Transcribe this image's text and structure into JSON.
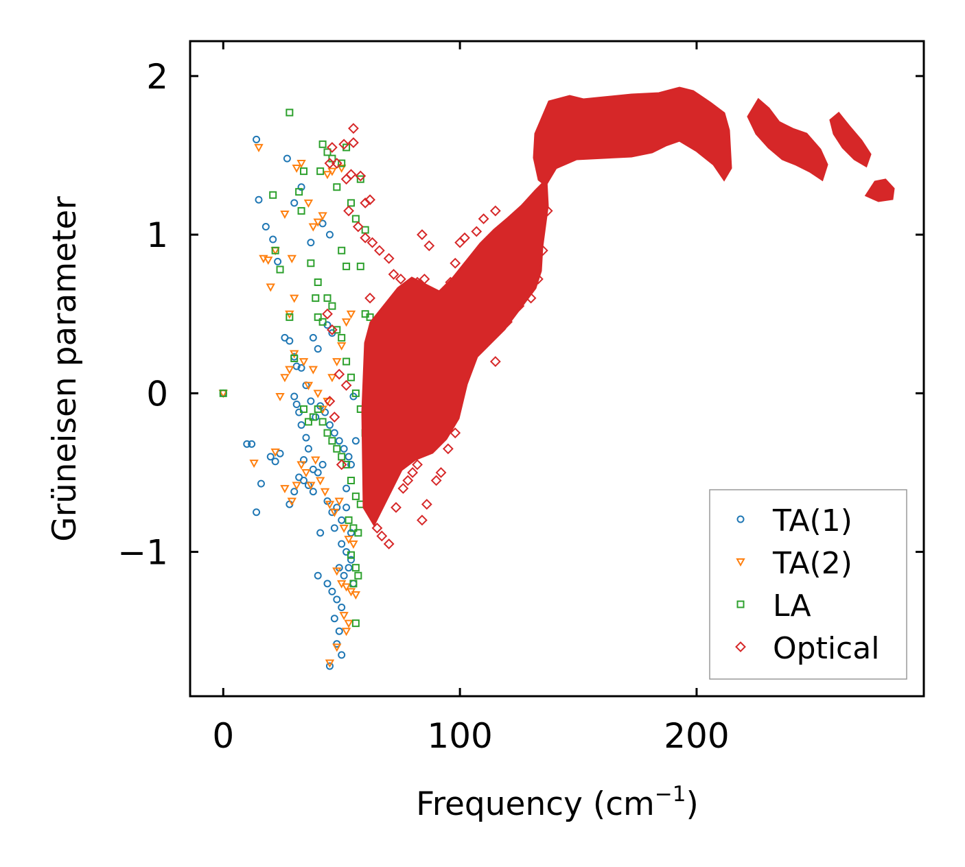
{
  "chart_data": {
    "type": "scatter",
    "title": "",
    "xlabel": "Frequency (cm",
    "xlabel_sup": "−1",
    "xlabel_suffix": ")",
    "ylabel": "Grüneisen parameter",
    "xlim": [
      -14,
      296
    ],
    "ylim": [
      -1.91,
      2.22
    ],
    "xticks": [
      0,
      100,
      200
    ],
    "xtick_labels": [
      "0",
      "100",
      "200"
    ],
    "yticks": [
      -1,
      0,
      1,
      2
    ],
    "ytick_labels": [
      "−1",
      "0",
      "1",
      "2"
    ],
    "grid": false,
    "legend_position": "lower-right",
    "series": [
      {
        "name": "TA(1)",
        "marker": "circle",
        "color": "#1f77b4",
        "points": [
          [
            0,
            0
          ],
          [
            14,
            1.6
          ],
          [
            15,
            1.22
          ],
          [
            18,
            1.05
          ],
          [
            21,
            0.97
          ],
          [
            23,
            0.83
          ],
          [
            27,
            1.48
          ],
          [
            30,
            1.2
          ],
          [
            33,
            1.3
          ],
          [
            37,
            0.95
          ],
          [
            42,
            1.07
          ],
          [
            45,
            1.0
          ],
          [
            10,
            -0.32
          ],
          [
            12,
            -0.32
          ],
          [
            14,
            -0.75
          ],
          [
            16,
            -0.57
          ],
          [
            20,
            -0.4
          ],
          [
            22,
            -0.43
          ],
          [
            24,
            -0.38
          ],
          [
            26,
            0.35
          ],
          [
            28,
            0.33
          ],
          [
            30,
            0.23
          ],
          [
            31,
            0.17
          ],
          [
            33,
            0.16
          ],
          [
            35,
            0.05
          ],
          [
            38,
            0.35
          ],
          [
            40,
            0.28
          ],
          [
            44,
            0.43
          ],
          [
            46,
            0.38
          ],
          [
            30,
            -0.02
          ],
          [
            31,
            -0.07
          ],
          [
            32,
            -0.12
          ],
          [
            33,
            -0.2
          ],
          [
            35,
            -0.28
          ],
          [
            37,
            -0.05
          ],
          [
            39,
            -0.15
          ],
          [
            41,
            -0.08
          ],
          [
            43,
            -0.12
          ],
          [
            45,
            -0.2
          ],
          [
            47,
            -0.25
          ],
          [
            49,
            -0.3
          ],
          [
            51,
            -0.35
          ],
          [
            53,
            -0.4
          ],
          [
            55,
            -0.02
          ],
          [
            28,
            -0.7
          ],
          [
            30,
            -0.62
          ],
          [
            32,
            -0.53
          ],
          [
            34,
            -0.55
          ],
          [
            36,
            -0.58
          ],
          [
            38,
            -0.62
          ],
          [
            40,
            -0.5
          ],
          [
            42,
            -0.45
          ],
          [
            44,
            -0.68
          ],
          [
            46,
            -0.75
          ],
          [
            48,
            -0.72
          ],
          [
            50,
            -0.8
          ],
          [
            52,
            -0.72
          ],
          [
            54,
            -0.88
          ],
          [
            41,
            -0.88
          ],
          [
            47,
            -0.85
          ],
          [
            50,
            -0.95
          ],
          [
            52,
            -1.0
          ],
          [
            54,
            -1.05
          ],
          [
            49,
            -1.1
          ],
          [
            51,
            -1.15
          ],
          [
            40,
            -1.15
          ],
          [
            44,
            -1.2
          ],
          [
            46,
            -1.25
          ],
          [
            48,
            -1.3
          ],
          [
            50,
            -1.35
          ],
          [
            47,
            -1.42
          ],
          [
            49,
            -1.5
          ],
          [
            48,
            -1.58
          ],
          [
            50,
            -1.65
          ],
          [
            45,
            -1.72
          ],
          [
            53,
            -1.1
          ],
          [
            55,
            -1.2
          ],
          [
            52,
            -0.6
          ],
          [
            54,
            -0.45
          ],
          [
            36,
            -0.35
          ],
          [
            38,
            -0.48
          ],
          [
            34,
            -0.42
          ],
          [
            56,
            -0.3
          ]
        ]
      },
      {
        "name": "TA(2)",
        "marker": "triangle-down",
        "color": "#ff7f0e",
        "points": [
          [
            0,
            0
          ],
          [
            15,
            1.55
          ],
          [
            17,
            0.85
          ],
          [
            19,
            0.84
          ],
          [
            20,
            0.67
          ],
          [
            22,
            0.9
          ],
          [
            26,
            1.13
          ],
          [
            29,
            0.85
          ],
          [
            31,
            1.42
          ],
          [
            33,
            1.45
          ],
          [
            36,
            1.2
          ],
          [
            38,
            1.05
          ],
          [
            40,
            1.08
          ],
          [
            42,
            1.12
          ],
          [
            44,
            1.38
          ],
          [
            46,
            1.4
          ],
          [
            50,
            1.42
          ],
          [
            13,
            -0.44
          ],
          [
            24,
            -0.02
          ],
          [
            26,
            0.1
          ],
          [
            28,
            0.15
          ],
          [
            30,
            0.25
          ],
          [
            22,
            -0.37
          ],
          [
            26,
            -0.6
          ],
          [
            29,
            -0.68
          ],
          [
            31,
            -0.58
          ],
          [
            33,
            -0.45
          ],
          [
            35,
            -0.5
          ],
          [
            37,
            -0.58
          ],
          [
            39,
            -0.42
          ],
          [
            41,
            -0.55
          ],
          [
            43,
            -0.62
          ],
          [
            45,
            -0.7
          ],
          [
            47,
            -0.75
          ],
          [
            49,
            -0.68
          ],
          [
            51,
            -0.85
          ],
          [
            53,
            -0.92
          ],
          [
            55,
            -0.95
          ],
          [
            48,
            -1.12
          ],
          [
            50,
            -1.2
          ],
          [
            52,
            -1.22
          ],
          [
            54,
            -1.25
          ],
          [
            56,
            -1.27
          ],
          [
            51,
            -1.4
          ],
          [
            53,
            -1.45
          ],
          [
            52,
            -1.5
          ],
          [
            48,
            -1.6
          ],
          [
            45,
            -1.7
          ],
          [
            36,
            0.05
          ],
          [
            38,
            0.15
          ],
          [
            40,
            0.0
          ],
          [
            42,
            -0.1
          ],
          [
            44,
            -0.05
          ],
          [
            46,
            0.1
          ],
          [
            48,
            0.2
          ],
          [
            50,
            0.3
          ],
          [
            52,
            0.45
          ],
          [
            54,
            0.5
          ],
          [
            34,
            0.2
          ],
          [
            28,
            0.5
          ],
          [
            30,
            0.6
          ]
        ]
      },
      {
        "name": "LA",
        "marker": "square",
        "color": "#2ca02c",
        "points": [
          [
            0,
            0
          ],
          [
            28,
            1.77
          ],
          [
            21,
            1.25
          ],
          [
            22,
            0.9
          ],
          [
            24,
            0.78
          ],
          [
            32,
            1.27
          ],
          [
            33,
            1.15
          ],
          [
            34,
            1.4
          ],
          [
            37,
            0.82
          ],
          [
            39,
            0.6
          ],
          [
            40,
            0.7
          ],
          [
            41,
            1.4
          ],
          [
            42,
            1.57
          ],
          [
            44,
            1.52
          ],
          [
            46,
            1.48
          ],
          [
            48,
            1.3
          ],
          [
            50,
            1.45
          ],
          [
            52,
            1.55
          ],
          [
            54,
            1.2
          ],
          [
            56,
            1.1
          ],
          [
            58,
            1.35
          ],
          [
            60,
            1.03
          ],
          [
            28,
            0.48
          ],
          [
            30,
            0.22
          ],
          [
            40,
            0.48
          ],
          [
            42,
            0.45
          ],
          [
            44,
            0.6
          ],
          [
            46,
            0.55
          ],
          [
            48,
            0.4
          ],
          [
            50,
            0.35
          ],
          [
            52,
            0.2
          ],
          [
            54,
            0.1
          ],
          [
            56,
            0.0
          ],
          [
            58,
            -0.1
          ],
          [
            60,
            -0.25
          ],
          [
            62,
            0.05
          ],
          [
            40,
            -0.1
          ],
          [
            42,
            -0.18
          ],
          [
            44,
            -0.25
          ],
          [
            46,
            -0.3
          ],
          [
            48,
            -0.35
          ],
          [
            50,
            -0.4
          ],
          [
            52,
            -0.45
          ],
          [
            54,
            -0.55
          ],
          [
            56,
            -0.65
          ],
          [
            58,
            -0.7
          ],
          [
            53,
            -0.8
          ],
          [
            55,
            -0.85
          ],
          [
            57,
            -0.88
          ],
          [
            54,
            -1.02
          ],
          [
            56,
            -1.1
          ],
          [
            55,
            -1.2
          ],
          [
            57,
            -1.15
          ],
          [
            56,
            -1.45
          ],
          [
            38,
            -0.15
          ],
          [
            60,
            0.5
          ],
          [
            62,
            0.48
          ],
          [
            58,
            0.8
          ],
          [
            50,
            0.9
          ],
          [
            52,
            0.8
          ],
          [
            36,
            -0.18
          ],
          [
            34,
            -0.1
          ]
        ]
      },
      {
        "name": "Optical",
        "marker": "diamond",
        "color": "#d62728",
        "points": [
          [
            55,
            1.67
          ],
          [
            46,
            1.55
          ],
          [
            51,
            1.57
          ],
          [
            55,
            1.58
          ],
          [
            45,
            1.45
          ],
          [
            48,
            1.45
          ],
          [
            52,
            1.35
          ],
          [
            54,
            1.38
          ],
          [
            58,
            1.37
          ],
          [
            60,
            1.2
          ],
          [
            62,
            1.22
          ],
          [
            53,
            1.15
          ],
          [
            57,
            1.05
          ],
          [
            60,
            0.98
          ],
          [
            63,
            0.95
          ],
          [
            66,
            0.9
          ],
          [
            70,
            0.85
          ],
          [
            72,
            0.75
          ],
          [
            75,
            0.72
          ],
          [
            78,
            0.65
          ],
          [
            82,
            0.7
          ],
          [
            85,
            0.72
          ],
          [
            87,
            0.93
          ],
          [
            90,
            0.62
          ],
          [
            84,
            1.0
          ],
          [
            94,
            0.65
          ],
          [
            96,
            0.7
          ],
          [
            98,
            0.82
          ],
          [
            100,
            0.95
          ],
          [
            102,
            0.98
          ],
          [
            107,
            1.02
          ],
          [
            110,
            1.1
          ],
          [
            115,
            1.15
          ],
          [
            120,
            1.05
          ],
          [
            62,
            -0.7
          ],
          [
            65,
            -0.85
          ],
          [
            67,
            -0.9
          ],
          [
            70,
            -0.95
          ],
          [
            73,
            -0.72
          ],
          [
            76,
            -0.6
          ],
          [
            78,
            -0.55
          ],
          [
            80,
            -0.5
          ],
          [
            82,
            -0.45
          ],
          [
            84,
            -0.8
          ],
          [
            86,
            -0.7
          ],
          [
            90,
            -0.55
          ],
          [
            92,
            -0.5
          ],
          [
            95,
            -0.35
          ],
          [
            98,
            -0.25
          ],
          [
            62,
            0.6
          ],
          [
            65,
            0.45
          ],
          [
            68,
            0.3
          ],
          [
            70,
            0.2
          ],
          [
            72,
            0.1
          ],
          [
            74,
            0.05
          ],
          [
            76,
            -0.05
          ],
          [
            80,
            -0.1
          ],
          [
            85,
            -0.15
          ],
          [
            90,
            -0.2
          ],
          [
            95,
            0.05
          ],
          [
            100,
            0.3
          ],
          [
            105,
            0.45
          ],
          [
            110,
            0.35
          ],
          [
            115,
            0.2
          ],
          [
            120,
            0.45
          ],
          [
            125,
            0.55
          ],
          [
            130,
            0.6
          ],
          [
            133,
            0.72
          ],
          [
            135,
            0.9
          ],
          [
            137,
            1.15
          ],
          [
            45,
            -0.05
          ],
          [
            47,
            -0.15
          ],
          [
            49,
            0.12
          ],
          [
            52,
            0.05
          ],
          [
            50,
            -0.45
          ],
          [
            44,
            0.5
          ],
          [
            46,
            0.4
          ]
        ]
      }
    ]
  }
}
